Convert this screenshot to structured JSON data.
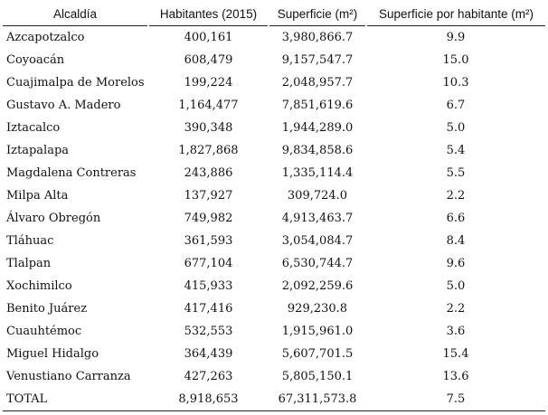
{
  "table": {
    "headers": [
      "Alcaldía",
      "Habitantes (2015)",
      "Superficie (m²)",
      "Superficie por habitante (m²)"
    ],
    "rows": [
      [
        "Azcapotzalco",
        "400,161",
        "3,980,866.7",
        "9.9"
      ],
      [
        "Coyoacán",
        "608,479",
        "9,157,547.7",
        "15.0"
      ],
      [
        "Cuajimalpa de Morelos",
        "199,224",
        "2,048,957.7",
        "10.3"
      ],
      [
        "Gustavo A. Madero",
        "1,164,477",
        "7,851,619.6",
        "6.7"
      ],
      [
        "Iztacalco",
        "390,348",
        "1,944,289.0",
        "5.0"
      ],
      [
        "Iztapalapa",
        "1,827,868",
        "9,834,858.6",
        "5.4"
      ],
      [
        "Magdalena Contreras",
        "243,886",
        "1,335,114.4",
        "5.5"
      ],
      [
        "Milpa Alta",
        "137,927",
        "309,724.0",
        "2.2"
      ],
      [
        "Álvaro Obregón",
        "749,982",
        "4,913,463.7",
        "6.6"
      ],
      [
        "Tláhuac",
        "361,593",
        "3,054,084.7",
        "8.4"
      ],
      [
        "Tlalpan",
        "677,104",
        "6,530,744.7",
        "9.6"
      ],
      [
        "Xochimilco",
        "415,933",
        "2,092,259.6",
        "5.0"
      ],
      [
        "Benito Juárez",
        "417,416",
        "929,230.8",
        "2.2"
      ],
      [
        "Cuauhtémoc",
        "532,553",
        "1,915,961.0",
        "3.6"
      ],
      [
        "Miguel Hidalgo",
        "364,439",
        "5,607,701.5",
        "15.4"
      ],
      [
        "Venustiano Carranza",
        "427,263",
        "5,805,150.1",
        "13.6"
      ]
    ],
    "total": [
      "TOTAL",
      "8,918,653",
      "67,311,573.8",
      "7.5"
    ]
  }
}
